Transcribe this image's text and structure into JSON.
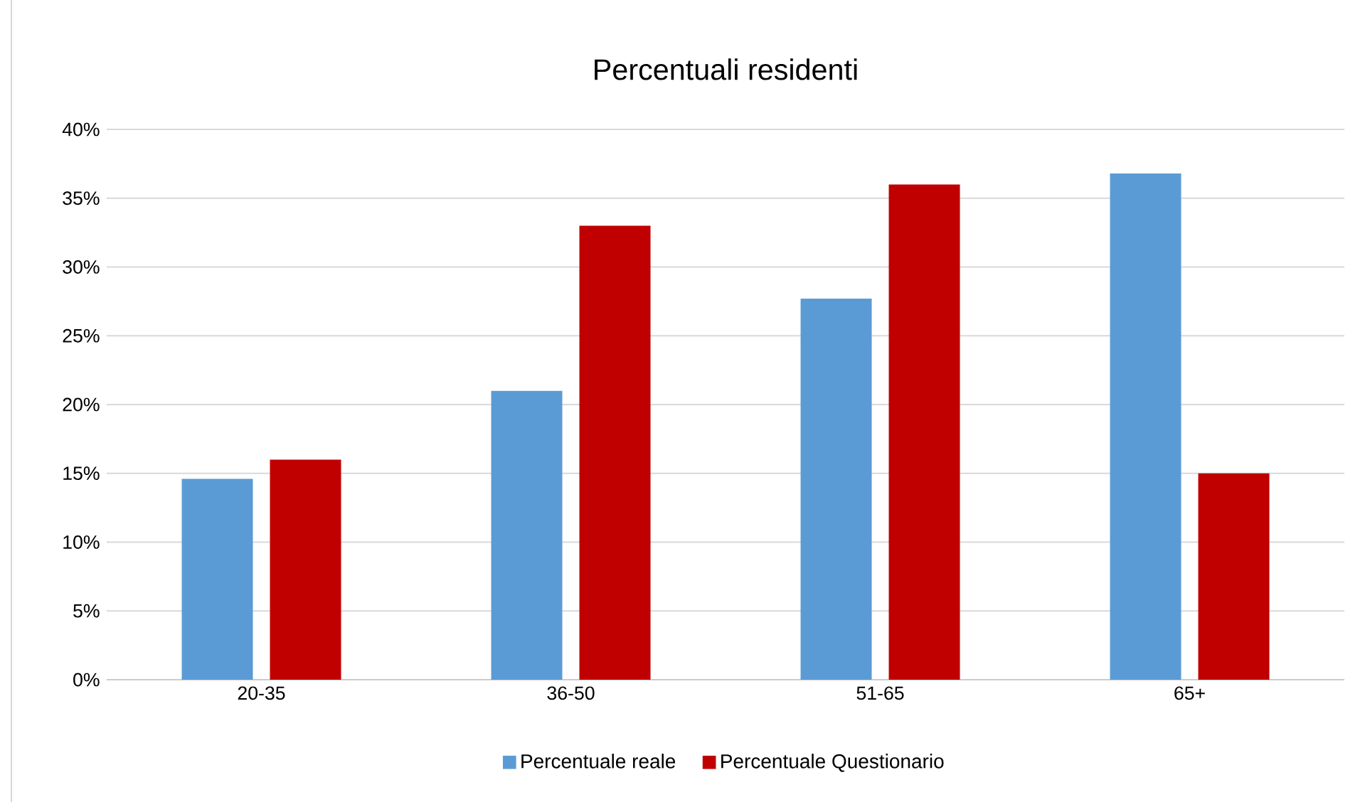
{
  "chart_data": {
    "type": "bar",
    "title": "Percentuali residenti",
    "categories": [
      "20-35",
      "36-50",
      "51-65",
      "65+"
    ],
    "series": [
      {
        "name": "Percentuale reale",
        "color": "#5b9bd5",
        "values": [
          14.6,
          21.0,
          27.7,
          36.8
        ]
      },
      {
        "name": "Percentuale Questionario",
        "color": "#c00000",
        "values": [
          16,
          33,
          36,
          15
        ]
      }
    ],
    "ylim": [
      0,
      40
    ],
    "yticks": [
      {
        "value": 0,
        "label": "0%"
      },
      {
        "value": 5,
        "label": "5%"
      },
      {
        "value": 10,
        "label": "10%"
      },
      {
        "value": 15,
        "label": "15%"
      },
      {
        "value": 20,
        "label": "20%"
      },
      {
        "value": 25,
        "label": "25%"
      },
      {
        "value": 30,
        "label": "30%"
      },
      {
        "value": 35,
        "label": "35%"
      },
      {
        "value": 40,
        "label": "40%"
      }
    ],
    "grid": "y",
    "legend": "bottom"
  }
}
